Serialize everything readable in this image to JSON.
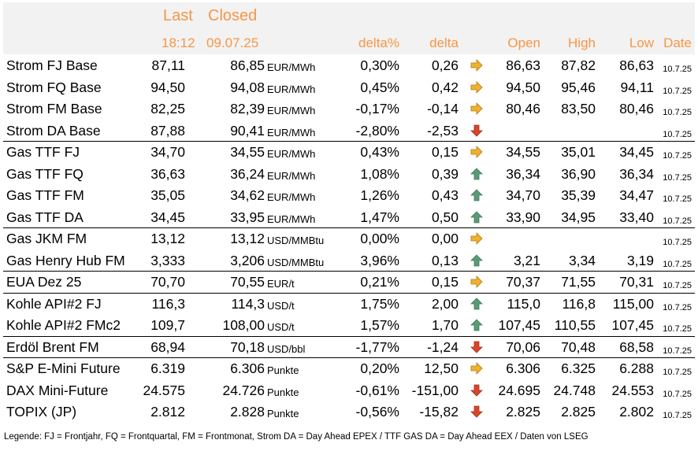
{
  "header": {
    "last_label": "Last",
    "closed_label": "Closed",
    "last_time": "18:12",
    "closed_date": "09.07.25",
    "col_deltapct": "delta%",
    "col_delta": "delta",
    "col_open": "Open",
    "col_high": "High",
    "col_low": "Low",
    "col_date": "Date"
  },
  "rows": [
    {
      "name": "Strom FJ Base",
      "last": "87,11",
      "closed": "86,85",
      "unit": "EUR/MWh",
      "deltapct": "0,30%",
      "delta": "0,26",
      "trend": "flat",
      "open": "86,63",
      "high": "87,82",
      "low": "86,63",
      "date": "10.7.25"
    },
    {
      "name": "Strom FQ Base",
      "last": "94,50",
      "closed": "94,08",
      "unit": "EUR/MWh",
      "deltapct": "0,45%",
      "delta": "0,42",
      "trend": "flat",
      "open": "94,50",
      "high": "95,46",
      "low": "94,11",
      "date": "10.7.25"
    },
    {
      "name": "Strom FM Base",
      "last": "82,25",
      "closed": "82,39",
      "unit": "EUR/MWh",
      "deltapct": "-0,17%",
      "delta": "-0,14",
      "trend": "flat",
      "open": "80,46",
      "high": "83,50",
      "low": "80,46",
      "date": "10.7.25"
    },
    {
      "name": "Strom DA Base",
      "last": "87,88",
      "closed": "90,41",
      "unit": "EUR/MWh",
      "deltapct": "-2,80%",
      "delta": "-2,53",
      "trend": "down",
      "open": "",
      "high": "",
      "low": "",
      "date": "10.7.25"
    },
    {
      "name": "Gas TTF FJ",
      "last": "34,70",
      "closed": "34,55",
      "unit": "EUR/MWh",
      "deltapct": "0,43%",
      "delta": "0,15",
      "trend": "flat",
      "open": "34,55",
      "high": "35,01",
      "low": "34,45",
      "date": "10.7.25"
    },
    {
      "name": "Gas TTF FQ",
      "last": "36,63",
      "closed": "36,24",
      "unit": "EUR/MWh",
      "deltapct": "1,08%",
      "delta": "0,39",
      "trend": "up",
      "open": "36,34",
      "high": "36,90",
      "low": "36,34",
      "date": "10.7.25"
    },
    {
      "name": "Gas TTF FM",
      "last": "35,05",
      "closed": "34,62",
      "unit": "EUR/MWh",
      "deltapct": "1,26%",
      "delta": "0,43",
      "trend": "up",
      "open": "34,70",
      "high": "35,39",
      "low": "34,47",
      "date": "10.7.25"
    },
    {
      "name": "Gas TTF DA",
      "last": "34,45",
      "closed": "33,95",
      "unit": "EUR/MWh",
      "deltapct": "1,47%",
      "delta": "0,50",
      "trend": "up",
      "open": "33,90",
      "high": "34,95",
      "low": "33,40",
      "date": "10.7.25"
    },
    {
      "name": "Gas JKM FM",
      "last": "13,12",
      "closed": "13,12",
      "unit": "USD/MMBtu",
      "deltapct": "0,00%",
      "delta": "0,00",
      "trend": "flat",
      "open": "",
      "high": "",
      "low": "",
      "date": "10.7.25"
    },
    {
      "name": "Gas Henry Hub FM",
      "last": "3,333",
      "closed": "3,206",
      "unit": "USD/MMBtu",
      "deltapct": "3,96%",
      "delta": "0,13",
      "trend": "up",
      "open": "3,21",
      "high": "3,34",
      "low": "3,19",
      "date": "10.7.25"
    },
    {
      "name": "EUA Dez 25",
      "last": "70,70",
      "closed": "70,55",
      "unit": "EUR/t",
      "deltapct": "0,21%",
      "delta": "0,15",
      "trend": "flat",
      "open": "70,37",
      "high": "71,55",
      "low": "70,31",
      "date": "10.7.25"
    },
    {
      "name": "Kohle API#2 FJ",
      "last": "116,3",
      "closed": "114,3",
      "unit": "USD/t",
      "deltapct": "1,75%",
      "delta": "2,00",
      "trend": "up",
      "open": "115,0",
      "high": "116,8",
      "low": "115,00",
      "date": "10.7.25"
    },
    {
      "name": "Kohle API#2 FMc2",
      "last": "109,7",
      "closed": "108,00",
      "unit": "USD/t",
      "deltapct": "1,57%",
      "delta": "1,70",
      "trend": "up",
      "open": "107,45",
      "high": "110,55",
      "low": "107,45",
      "date": "10.7.25"
    },
    {
      "name": "Erdöl Brent FM",
      "last": "68,94",
      "closed": "70,18",
      "unit": "USD/bbl",
      "deltapct": "-1,77%",
      "delta": "-1,24",
      "trend": "down",
      "open": "70,06",
      "high": "70,48",
      "low": "68,58",
      "date": "10.7.25"
    },
    {
      "name": "S&P E-Mini Future",
      "last": "6.319",
      "closed": "6.306",
      "unit": "Punkte",
      "deltapct": "0,20%",
      "delta": "12,50",
      "trend": "flat",
      "open": "6.306",
      "high": "6.325",
      "low": "6.288",
      "date": "10.7.25"
    },
    {
      "name": "DAX Mini-Future",
      "last": "24.575",
      "closed": "24.726",
      "unit": "Punkte",
      "deltapct": "-0,61%",
      "delta": "-151,00",
      "trend": "down",
      "open": "24.695",
      "high": "24.748",
      "low": "24.553",
      "date": "10.7.25"
    },
    {
      "name": "TOPIX (JP)",
      "last": "2.812",
      "closed": "2.828",
      "unit": "Punkte",
      "deltapct": "-0,56%",
      "delta": "-15,82",
      "trend": "down",
      "open": "2.825",
      "high": "2.825",
      "low": "2.802",
      "date": "10.7.25"
    }
  ],
  "legend": "Legende: FJ = Frontjahr, FQ = Frontquartal, FM = Frontmonat, Strom DA = Day Ahead EPEX / TTF GAS DA = Day Ahead EEX / Daten von LSEG",
  "icons": {
    "flat": "arrow-right-icon",
    "up": "arrow-up-icon",
    "down": "arrow-down-icon"
  },
  "colors": {
    "header_text": "#f79646",
    "header_bg": "#f2f2f2",
    "arrow_flat": "#f0b030",
    "arrow_up": "#5a9a78",
    "arrow_down": "#d9452b"
  }
}
